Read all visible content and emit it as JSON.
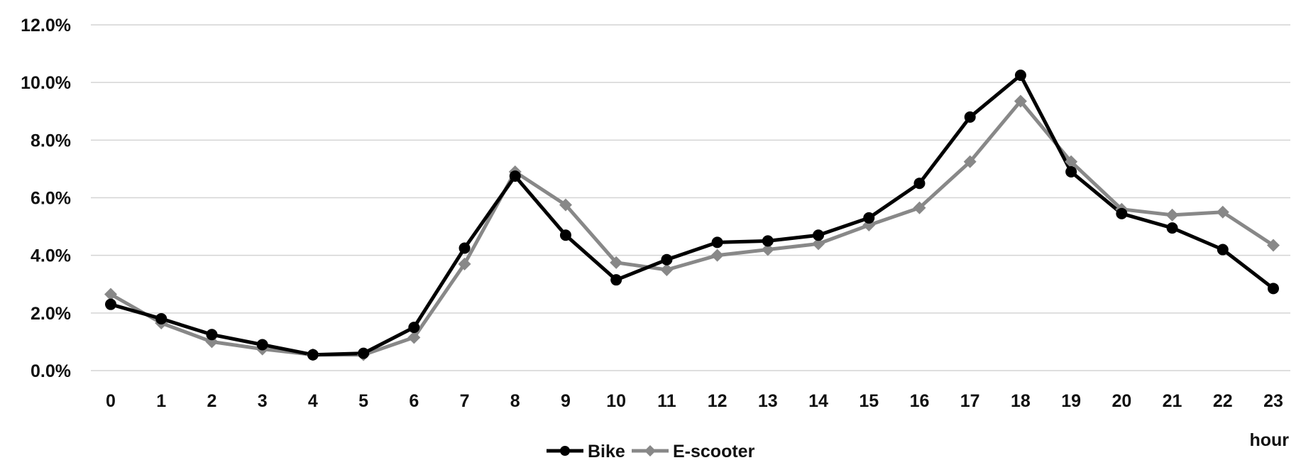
{
  "chart_data": {
    "type": "line",
    "x": [
      "0",
      "1",
      "2",
      "3",
      "4",
      "5",
      "6",
      "7",
      "8",
      "9",
      "10",
      "11",
      "12",
      "13",
      "14",
      "15",
      "16",
      "17",
      "18",
      "19",
      "20",
      "21",
      "22",
      "23"
    ],
    "xlabel": "hour",
    "ylabel": "",
    "ylim": [
      0,
      12
    ],
    "yticks": [
      "0.0%",
      "2.0%",
      "4.0%",
      "6.0%",
      "8.0%",
      "10.0%",
      "12.0%"
    ],
    "grid": "horizontal",
    "legend_position": "bottom-center",
    "series": [
      {
        "name": "Bike",
        "color": "#000000",
        "marker": "circle",
        "values": [
          2.3,
          1.8,
          1.25,
          0.9,
          0.55,
          0.6,
          1.5,
          4.25,
          6.75,
          4.7,
          3.15,
          3.85,
          4.45,
          4.5,
          4.7,
          5.3,
          6.5,
          8.8,
          10.25,
          6.9,
          5.45,
          4.95,
          4.2,
          2.85
        ]
      },
      {
        "name": "E-scooter",
        "color": "#888888",
        "marker": "diamond",
        "values": [
          2.65,
          1.65,
          1.0,
          0.75,
          0.55,
          0.55,
          1.15,
          3.7,
          6.9,
          5.75,
          3.75,
          3.5,
          4.0,
          4.2,
          4.4,
          5.05,
          5.65,
          7.25,
          9.35,
          7.25,
          5.6,
          5.4,
          5.5,
          4.35
        ]
      }
    ]
  }
}
